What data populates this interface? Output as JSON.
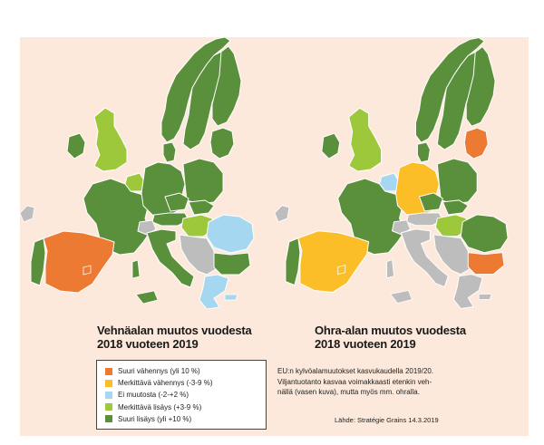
{
  "colors": {
    "background": "#fce9db",
    "sea": "#fce9db",
    "border": "#ffffff",
    "no_data": "#bdbdbd"
  },
  "legend": {
    "items": [
      {
        "id": "large-decrease",
        "label": "Suuri vähennys (yli 10 %)",
        "color": "#ec7a33"
      },
      {
        "id": "significant-decrease",
        "label": "Merkittävä vähennys (-3-9 %)",
        "color": "#fbbe26"
      },
      {
        "id": "no-change",
        "label": "Ei muutosta (-2-+2 %)",
        "color": "#a5d8f0"
      },
      {
        "id": "significant-increase",
        "label": "Merkittävä lisäys (+3-9 %)",
        "color": "#9ec83c"
      },
      {
        "id": "large-increase",
        "label": "Suuri lisäys (yli +10 %)",
        "color": "#5a8f3c"
      }
    ]
  },
  "maps": [
    {
      "id": "wheat",
      "title_line1": "Vehnäalan muutos vuodesta",
      "title_line2": "2018 vuoteen 2019",
      "countries": {
        "Spain": "large-decrease",
        "Portugal": "large-increase",
        "France": "large-increase",
        "UK": "significant-increase",
        "Ireland": "large-increase",
        "Benelux": "significant-increase",
        "Germany": "large-increase",
        "Denmark": "large-increase",
        "Norway": "large-increase",
        "Sweden": "large-increase",
        "Finland": "large-increase",
        "Baltics": "large-increase",
        "Poland": "large-increase",
        "Czechia": "large-increase",
        "Slovakia": "large-increase",
        "Austria": "large-increase",
        "Switzerland": "no-data",
        "Hungary": "significant-increase",
        "Italy": "large-increase",
        "Romania": "no-change",
        "Bulgaria": "large-increase",
        "Greece": "no-change",
        "Balkans": "no-data"
      }
    },
    {
      "id": "barley",
      "title_line1": "Ohra-alan muutos vuodesta",
      "title_line2": "2018 vuoteen 2019",
      "countries": {
        "Spain": "significant-decrease",
        "Portugal": "large-increase",
        "France": "large-increase",
        "UK": "significant-increase",
        "Ireland": "large-increase",
        "Benelux": "no-change",
        "Germany": "significant-decrease",
        "Denmark": "large-increase",
        "Norway": "large-increase",
        "Sweden": "large-increase",
        "Finland": "large-increase",
        "Baltics": "large-decrease",
        "Poland": "large-increase",
        "Czechia": "large-increase",
        "Slovakia": "large-increase",
        "Austria": "no-data",
        "Switzerland": "no-data",
        "Hungary": "significant-increase",
        "Italy": "no-data",
        "Romania": "large-increase",
        "Bulgaria": "large-decrease",
        "Greece": "no-data",
        "Balkans": "no-data"
      }
    }
  ],
  "note": {
    "line1": "EU:n kylvöalamuutokset kasvukaudella 2019/20.",
    "line2": "Viljantuotanto kasvaa voimakkaasti etenkin veh-",
    "line3": "nällä (vasen kuva), mutta myös mm. ohralla."
  },
  "source": "Lähde: Stratégie Grains 14.3.2019"
}
